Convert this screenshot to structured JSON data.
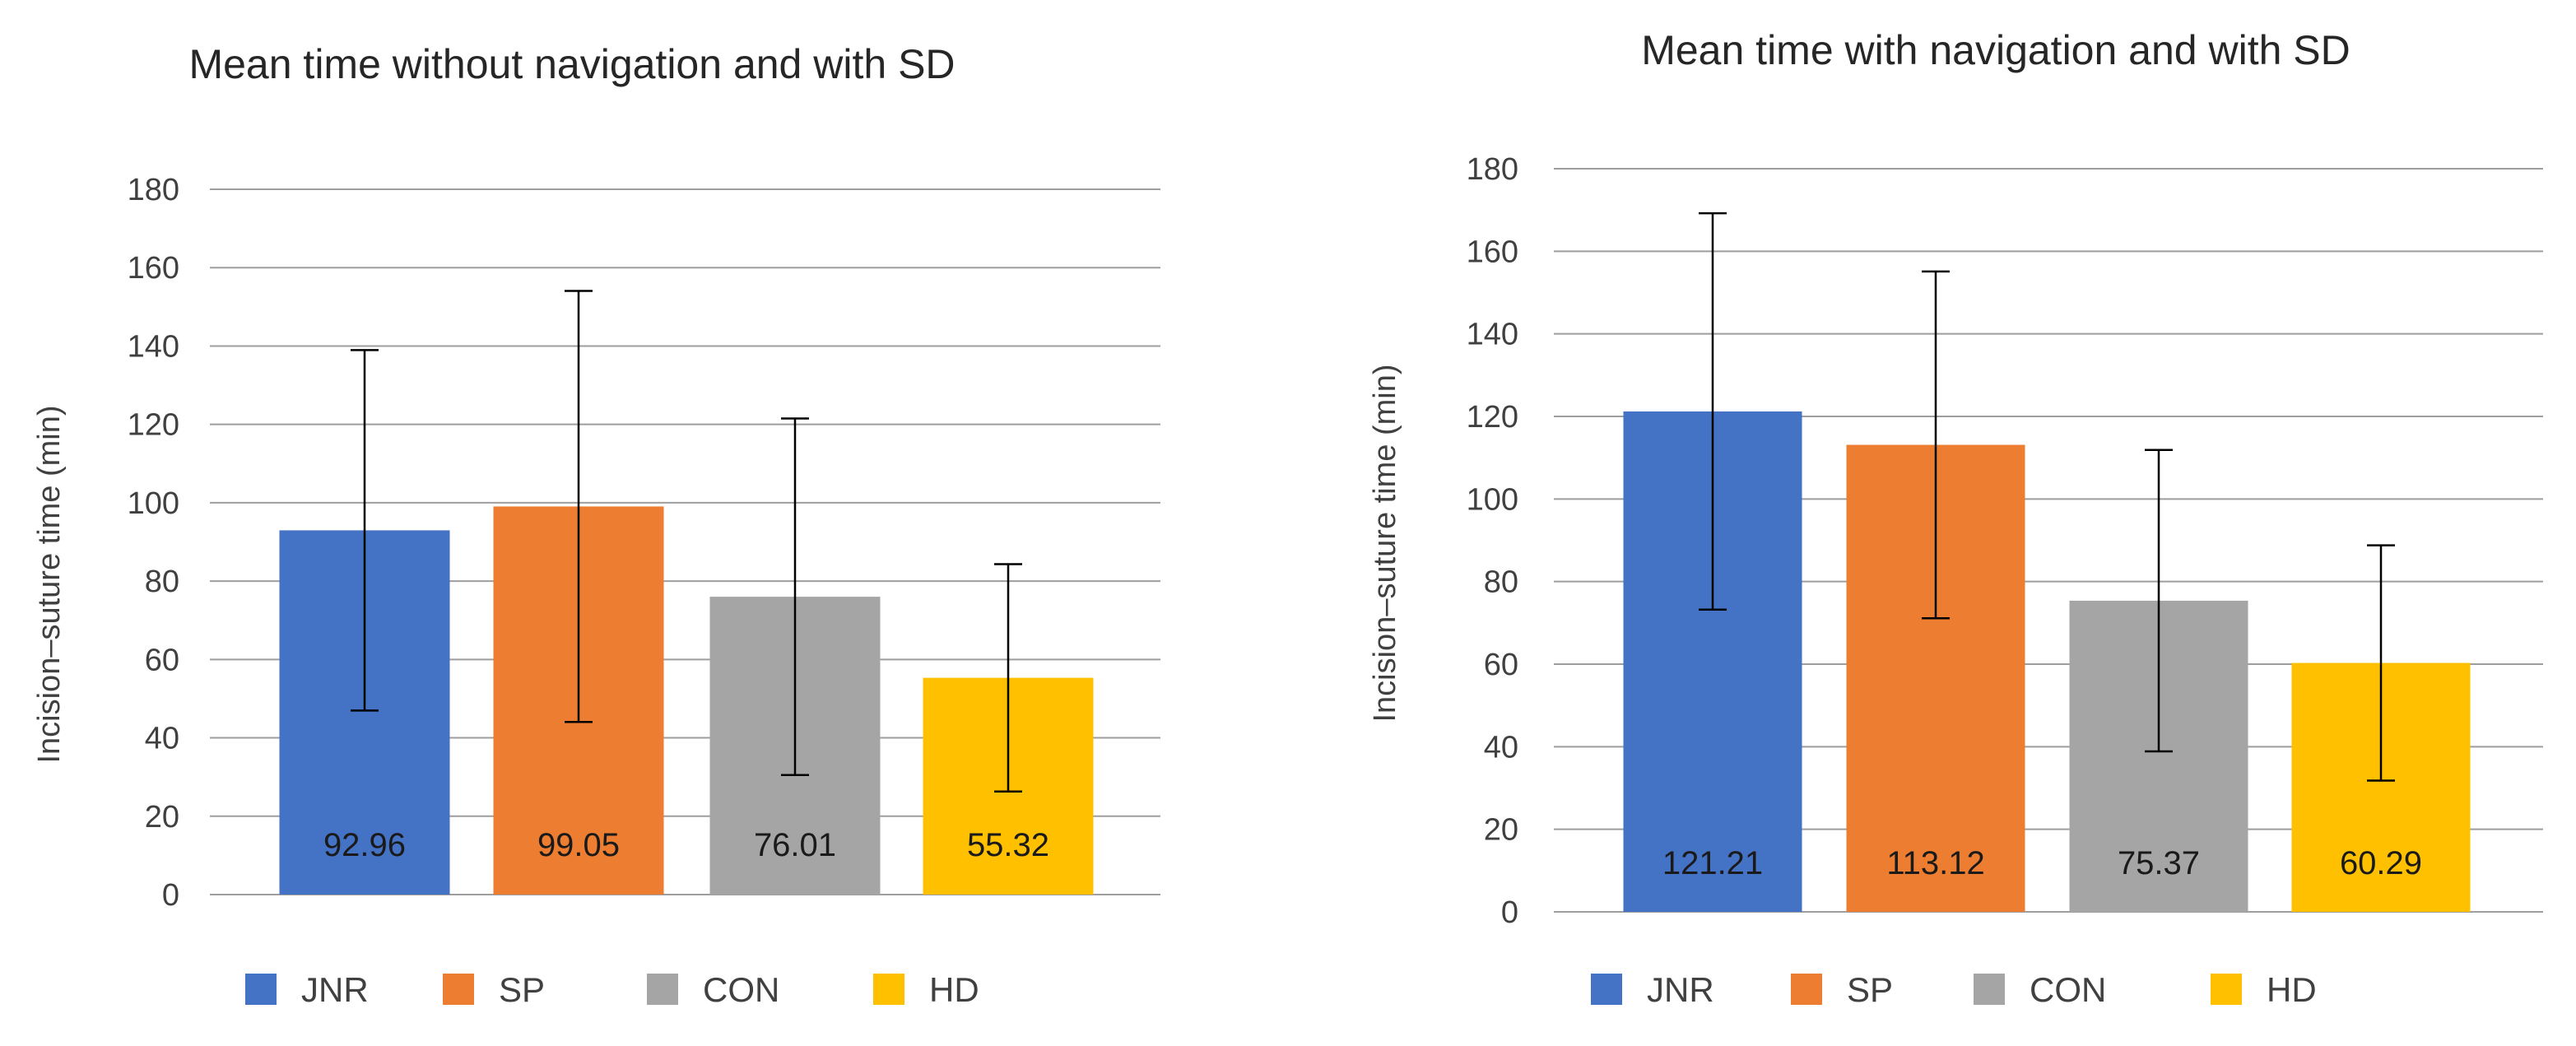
{
  "chart_data": [
    {
      "type": "bar",
      "title": "Mean time without navigation and with SD",
      "ylabel": "Incision–suture time (min)",
      "xlabel": "",
      "categories": [
        "JNR",
        "SP",
        "CON",
        "HD"
      ],
      "values": [
        92.96,
        99.05,
        76.01,
        55.32
      ],
      "value_labels": [
        "92.96",
        "99.05",
        "76.01",
        "55.32"
      ],
      "error_sd": [
        46,
        55,
        45.5,
        29
      ],
      "ylim": [
        0,
        180
      ],
      "yticks": [
        0,
        20,
        40,
        60,
        80,
        100,
        120,
        140,
        160,
        180
      ],
      "grid": true,
      "legend": "bottom",
      "colors": [
        "#4472C4",
        "#ED7D31",
        "#A5A5A5",
        "#FFC000"
      ]
    },
    {
      "type": "bar",
      "title": "Mean time with navigation and with SD",
      "ylabel": "Incision–suture time (min)",
      "xlabel": "",
      "categories": [
        "JNR",
        "SP",
        "CON",
        "HD"
      ],
      "values": [
        121.21,
        113.12,
        75.37,
        60.29
      ],
      "value_labels": [
        "121.21",
        "113.12",
        "75.37",
        "60.29"
      ],
      "error_sd": [
        48,
        42,
        36.5,
        28.5
      ],
      "ylim": [
        0,
        180
      ],
      "yticks": [
        0,
        20,
        40,
        60,
        80,
        100,
        120,
        140,
        160,
        180
      ],
      "grid": true,
      "legend": "bottom",
      "colors": [
        "#4472C4",
        "#ED7D31",
        "#A5A5A5",
        "#FFC000"
      ]
    }
  ]
}
